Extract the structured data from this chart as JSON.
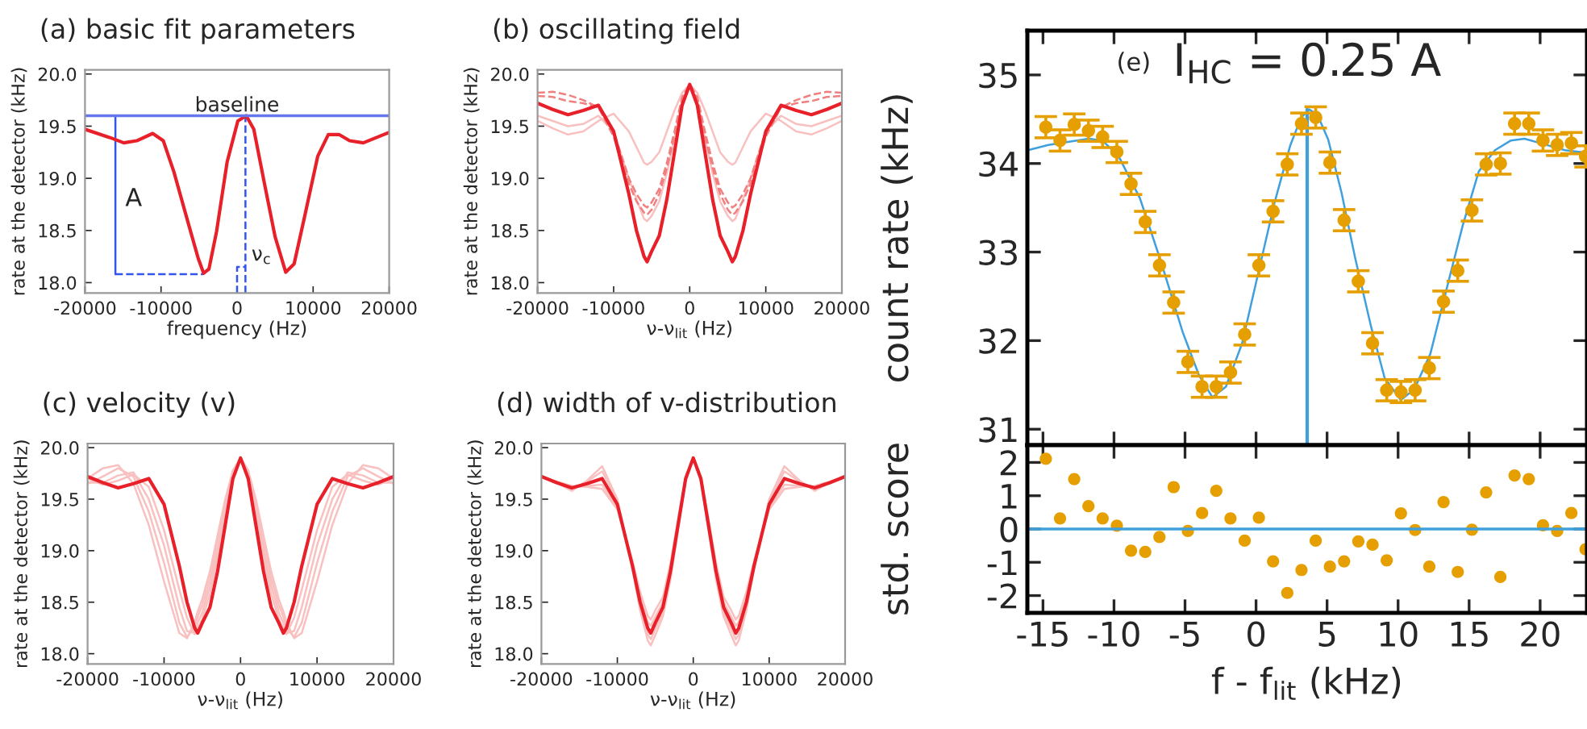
{
  "chart_data": [
    {
      "type": "line",
      "title": "(a) basic fit parameters",
      "xlabel": "frequency (Hz)",
      "ylabel": "rate at the detector (kHz)",
      "xlim": [
        -20000,
        20000
      ],
      "xticks": [
        -20000,
        -10000,
        0,
        10000,
        20000
      ],
      "ylim": [
        17.9,
        20.04
      ],
      "yticks": [
        {
          "value": 18,
          "label": "18.0"
        },
        18.5,
        {
          "value": 19,
          "label": "19.0"
        },
        19.5,
        {
          "value": 20,
          "label": "20.0"
        }
      ],
      "series": [
        {
          "color": "#3355ee",
          "x": [
            -16000,
            -16000
          ],
          "values": [
            18.08,
            19.6
          ]
        },
        {
          "color": "#3355ee",
          "line_style": "dashed",
          "x": [
            -16000,
            -4400
          ],
          "values": [
            18.08,
            18.08
          ]
        },
        {
          "color": "#3355ee",
          "line_style": "dashed",
          "x": [
            1100,
            1100
          ],
          "values": [
            17.9,
            19.6
          ]
        },
        {
          "color": "#3355ee",
          "line_style": "dashed",
          "x": [
            0,
            0,
            1100
          ],
          "values": [
            17.9,
            18.15,
            18.15
          ]
        },
        {
          "color": "#e8202a",
          "x": [
            -20000,
            -16700,
            -14900,
            -13200,
            -11100,
            -9700,
            -8300,
            -6500,
            -5100,
            -4400,
            -3700,
            -2700,
            -1300,
            100,
            1200,
            2200,
            3600,
            5000,
            6400,
            7500,
            8900,
            10600,
            12000,
            13400,
            14800,
            16600,
            18300,
            20000
          ],
          "values": [
            19.47,
            19.39,
            19.34,
            19.36,
            19.43,
            19.36,
            19.06,
            18.59,
            18.23,
            18.09,
            18.13,
            18.49,
            19.16,
            19.55,
            19.6,
            19.47,
            18.95,
            18.44,
            18.1,
            18.18,
            18.64,
            19.21,
            19.42,
            19.42,
            19.36,
            19.34,
            19.39,
            19.44
          ]
        }
      ],
      "ref_lines": [
        {
          "axis": "y",
          "value": 19.6,
          "label": "baseline",
          "color": "#6677ee"
        }
      ],
      "annotations": [
        "A",
        "ν$_{c}$"
      ]
    },
    {
      "type": "line",
      "title": "(b) oscillating field",
      "xlabel": "ν-ν$_{lit}$ (Hz)",
      "ylabel": "rate at the detector (kHz)",
      "xlim": [
        -20000,
        20000
      ],
      "xticks": [
        -20000,
        -10000,
        0,
        10000,
        20000
      ],
      "ylim": [
        17.9,
        20.04
      ],
      "yticks": [
        {
          "value": 18,
          "label": "18.0"
        },
        18.5,
        {
          "value": 19,
          "label": "19.0"
        },
        19.5,
        {
          "value": 20,
          "label": "20.0"
        }
      ],
      "x": [
        -20000,
        -18000,
        -16000,
        -14000,
        -12000,
        -10000,
        -8000,
        -7000,
        -6000,
        -5600,
        -5000,
        -4000,
        -3000,
        -2000,
        -1000,
        0,
        1000,
        2000,
        3000,
        4000,
        5000,
        5600,
        6000,
        7000,
        8000,
        10000,
        12000,
        14000,
        16000,
        18000,
        20000
      ],
      "series": [
        {
          "color": "#f9c0c0",
          "values": [
            19.55,
            19.48,
            19.42,
            19.45,
            19.55,
            19.62,
            19.45,
            19.3,
            19.15,
            19.13,
            19.16,
            19.25,
            19.45,
            19.65,
            19.82,
            19.9,
            19.82,
            19.65,
            19.45,
            19.25,
            19.16,
            19.13,
            19.15,
            19.3,
            19.45,
            19.62,
            19.55,
            19.45,
            19.42,
            19.48,
            19.55
          ]
        },
        {
          "color": "#f9c0c0",
          "values": [
            19.6,
            19.55,
            19.5,
            19.52,
            19.6,
            19.45,
            19.0,
            18.8,
            18.61,
            18.59,
            18.64,
            18.78,
            19.05,
            19.38,
            19.75,
            19.9,
            19.75,
            19.38,
            19.05,
            18.78,
            18.64,
            18.59,
            18.61,
            18.8,
            19.0,
            19.45,
            19.6,
            19.52,
            19.5,
            19.55,
            19.6
          ]
        },
        {
          "color": "#f08080",
          "line_style": "dashed",
          "values": [
            19.79,
            19.78,
            19.74,
            19.72,
            19.68,
            19.4,
            18.95,
            18.78,
            18.67,
            18.65,
            18.7,
            18.85,
            19.1,
            19.4,
            19.76,
            19.9,
            19.76,
            19.4,
            19.1,
            18.85,
            18.7,
            18.65,
            18.67,
            18.78,
            18.95,
            19.4,
            19.68,
            19.72,
            19.74,
            19.78,
            19.79
          ]
        },
        {
          "color": "#f08080",
          "line_style": "dashed",
          "values": [
            19.82,
            19.83,
            19.8,
            19.75,
            19.68,
            19.45,
            19.0,
            18.85,
            18.74,
            18.72,
            18.77,
            18.9,
            19.15,
            19.45,
            19.78,
            19.9,
            19.78,
            19.45,
            19.15,
            18.9,
            18.77,
            18.72,
            18.74,
            18.85,
            19.0,
            19.45,
            19.68,
            19.75,
            19.8,
            19.83,
            19.82
          ]
        },
        {
          "color": "#e8202a",
          "values": [
            19.72,
            19.66,
            19.61,
            19.65,
            19.7,
            19.45,
            18.85,
            18.5,
            18.25,
            18.2,
            18.3,
            18.45,
            18.8,
            19.25,
            19.7,
            19.9,
            19.7,
            19.25,
            18.8,
            18.45,
            18.3,
            18.2,
            18.25,
            18.5,
            18.85,
            19.45,
            19.7,
            19.65,
            19.61,
            19.66,
            19.72
          ]
        }
      ]
    },
    {
      "type": "line",
      "title": "(c) velocity (v)",
      "xlabel": "ν-ν$_{lit}$ (Hz)",
      "ylabel": "rate at the detector (kHz)",
      "xlim": [
        -20000,
        20000
      ],
      "xticks": [
        -20000,
        -10000,
        0,
        10000,
        20000
      ],
      "ylim": [
        17.9,
        20.04
      ],
      "yticks": [
        {
          "value": 18,
          "label": "18.0"
        },
        18.5,
        {
          "value": 19,
          "label": "19.0"
        },
        19.5,
        {
          "value": 20,
          "label": "20.0"
        }
      ],
      "x": [
        -20000,
        -18000,
        -16000,
        -14000,
        -12000,
        -10000,
        -8000,
        -7000,
        -6000,
        -5600,
        -5000,
        -4000,
        -3000,
        -2000,
        -1000,
        0,
        1000,
        2000,
        3000,
        4000,
        5000,
        5600,
        6000,
        7000,
        8000,
        10000,
        12000,
        14000,
        16000,
        18000,
        20000
      ],
      "series": [
        {
          "color": "#f9c0c0",
          "values": [
            19.7,
            19.64,
            19.68,
            19.74,
            19.62,
            19.2,
            18.62,
            18.35,
            18.19,
            18.24,
            18.34,
            18.58,
            18.93,
            19.34,
            19.73,
            19.9,
            19.73,
            19.34,
            18.93,
            18.58,
            18.34,
            18.24,
            18.19,
            18.35,
            18.62,
            19.2,
            19.62,
            19.74,
            19.68,
            19.64,
            19.7
          ]
        },
        {
          "color": "#f9c0c0",
          "values": [
            19.66,
            19.66,
            19.73,
            19.76,
            19.5,
            19.05,
            18.45,
            18.22,
            18.2,
            18.3,
            18.4,
            18.66,
            19.0,
            19.4,
            19.75,
            19.9,
            19.75,
            19.4,
            19.0,
            18.66,
            18.4,
            18.3,
            18.2,
            18.22,
            18.45,
            19.05,
            19.5,
            19.76,
            19.73,
            19.66,
            19.66
          ]
        },
        {
          "color": "#f9c0c0",
          "values": [
            19.65,
            19.72,
            19.8,
            19.72,
            19.38,
            18.88,
            18.3,
            18.16,
            18.26,
            18.36,
            18.47,
            18.73,
            19.08,
            19.45,
            19.77,
            19.9,
            19.77,
            19.45,
            19.08,
            18.73,
            18.47,
            18.36,
            18.26,
            18.16,
            18.3,
            18.88,
            19.38,
            19.72,
            19.8,
            19.72,
            19.65
          ]
        },
        {
          "color": "#f9c0c0",
          "values": [
            19.7,
            19.8,
            19.83,
            19.65,
            19.25,
            18.7,
            18.2,
            18.15,
            18.31,
            18.41,
            18.53,
            18.8,
            19.15,
            19.5,
            19.78,
            19.9,
            19.78,
            19.5,
            19.15,
            18.8,
            18.53,
            18.41,
            18.31,
            18.15,
            18.2,
            18.7,
            19.25,
            19.65,
            19.83,
            19.8,
            19.7
          ]
        },
        {
          "color": "#e8202a",
          "values": [
            19.72,
            19.66,
            19.61,
            19.65,
            19.7,
            19.45,
            18.85,
            18.5,
            18.25,
            18.2,
            18.3,
            18.45,
            18.8,
            19.25,
            19.7,
            19.9,
            19.7,
            19.25,
            18.8,
            18.45,
            18.3,
            18.2,
            18.25,
            18.5,
            18.85,
            19.45,
            19.7,
            19.65,
            19.61,
            19.66,
            19.72
          ]
        }
      ]
    },
    {
      "type": "line",
      "title": "(d) width of v-distribution",
      "xlabel": "ν-ν$_{lit}$ (Hz)",
      "ylabel": "rate at the detector (kHz)",
      "xlim": [
        -20000,
        20000
      ],
      "xticks": [
        -20000,
        -10000,
        0,
        10000,
        20000
      ],
      "ylim": [
        17.9,
        20.04
      ],
      "yticks": [
        {
          "value": 18,
          "label": "18.0"
        },
        18.5,
        {
          "value": 19,
          "label": "19.0"
        },
        19.5,
        {
          "value": 20,
          "label": "20.0"
        }
      ],
      "x": [
        -20000,
        -18000,
        -16000,
        -14000,
        -12000,
        -10000,
        -8000,
        -7000,
        -6000,
        -5600,
        -5000,
        -4000,
        -3000,
        -2000,
        -1000,
        0,
        1000,
        2000,
        3000,
        4000,
        5000,
        5600,
        6000,
        7000,
        8000,
        10000,
        12000,
        14000,
        16000,
        18000,
        20000
      ],
      "series": [
        {
          "color": "#f9c0c0",
          "values": [
            19.73,
            19.66,
            19.58,
            19.68,
            19.82,
            19.5,
            18.82,
            18.42,
            18.13,
            18.08,
            18.18,
            18.36,
            18.72,
            19.2,
            19.68,
            19.9,
            19.68,
            19.2,
            18.72,
            18.36,
            18.18,
            18.08,
            18.13,
            18.42,
            18.82,
            19.5,
            19.82,
            19.68,
            19.58,
            19.66,
            19.73
          ]
        },
        {
          "color": "#f9c0c0",
          "values": [
            19.72,
            19.66,
            19.6,
            19.67,
            19.77,
            19.48,
            18.84,
            18.46,
            18.19,
            18.14,
            18.24,
            18.4,
            18.76,
            19.22,
            19.69,
            19.9,
            19.69,
            19.22,
            18.76,
            18.4,
            18.24,
            18.14,
            18.19,
            18.46,
            18.84,
            19.48,
            19.77,
            19.67,
            19.6,
            19.66,
            19.72
          ]
        },
        {
          "color": "#f9c0c0",
          "values": [
            19.72,
            19.66,
            19.62,
            19.63,
            19.64,
            19.42,
            18.87,
            18.55,
            18.31,
            18.27,
            18.36,
            18.5,
            18.84,
            19.28,
            19.71,
            19.9,
            19.71,
            19.28,
            18.84,
            18.5,
            18.36,
            18.27,
            18.31,
            18.55,
            18.87,
            19.42,
            19.64,
            19.63,
            19.62,
            19.66,
            19.72
          ]
        },
        {
          "color": "#f9c0c0",
          "values": [
            19.72,
            19.67,
            19.63,
            19.62,
            19.6,
            19.4,
            18.9,
            18.6,
            18.37,
            18.33,
            18.42,
            18.55,
            18.88,
            19.31,
            19.72,
            19.9,
            19.72,
            19.31,
            18.88,
            18.55,
            18.42,
            18.33,
            18.37,
            18.6,
            18.9,
            19.4,
            19.6,
            19.62,
            19.63,
            19.67,
            19.72
          ]
        },
        {
          "color": "#e8202a",
          "values": [
            19.72,
            19.66,
            19.61,
            19.65,
            19.7,
            19.45,
            18.85,
            18.5,
            18.25,
            18.2,
            18.3,
            18.45,
            18.8,
            19.25,
            19.7,
            19.9,
            19.7,
            19.25,
            18.8,
            18.45,
            18.3,
            18.2,
            18.25,
            18.5,
            18.85,
            19.45,
            19.7,
            19.65,
            19.61,
            19.66,
            19.72
          ]
        }
      ]
    },
    {
      "type": "scatter",
      "ylabel": "count rate (kHz)",
      "tick_labels": "y",
      "xlim": [
        -16.1,
        23.3
      ],
      "xticks": [
        -15,
        -10,
        -5,
        0,
        5,
        10,
        15,
        20
      ],
      "ylim": [
        30.82,
        35.5
      ],
      "yticks": [
        31,
        32,
        33,
        34,
        35
      ],
      "series": [
        {
          "type": "scatter",
          "color": "#e69f00",
          "x": [
            -14.8,
            -13.8,
            -12.8,
            -11.8,
            -10.8,
            -9.8,
            -8.8,
            -7.8,
            -6.8,
            -5.8,
            -4.8,
            -3.8,
            -2.8,
            -1.8,
            -0.8,
            0.2,
            1.2,
            2.2,
            3.2,
            4.2,
            5.2,
            6.2,
            7.2,
            8.2,
            9.2,
            10.2,
            11.2,
            12.2,
            13.2,
            14.2,
            15.2,
            16.2,
            17.2,
            18.2,
            19.2,
            20.2,
            21.2,
            22.2,
            23.2
          ],
          "values": [
            34.41,
            34.26,
            34.44,
            34.37,
            34.3,
            34.13,
            33.77,
            33.34,
            32.85,
            32.43,
            31.76,
            31.48,
            31.48,
            31.64,
            32.07,
            32.85,
            33.46,
            33.99,
            34.45,
            34.52,
            34.01,
            33.36,
            32.67,
            31.97,
            31.44,
            31.42,
            31.44,
            31.69,
            32.44,
            32.79,
            33.47,
            33.99,
            34.0,
            34.45,
            34.45,
            34.26,
            34.21,
            34.23,
            34.08
          ],
          "errors": [
            0.12,
            0.12,
            0.12,
            0.12,
            0.12,
            0.12,
            0.12,
            0.12,
            0.12,
            0.12,
            0.12,
            0.12,
            0.12,
            0.12,
            0.12,
            0.12,
            0.12,
            0.12,
            0.12,
            0.12,
            0.12,
            0.12,
            0.12,
            0.12,
            0.12,
            0.12,
            0.12,
            0.12,
            0.12,
            0.12,
            0.12,
            0.12,
            0.12,
            0.12,
            0.12,
            0.12,
            0.12,
            0.12,
            0.12
          ]
        },
        {
          "type": "line",
          "color": "#3fa0dd",
          "x": [
            -16.06,
            -14.62,
            -11.78,
            -10.83,
            -9.7,
            -8.18,
            -6.67,
            -5.15,
            -4.02,
            -3.07,
            -2.12,
            -0.98,
            0.15,
            1.29,
            2.42,
            3.18,
            3.75,
            4.32,
            5.08,
            6.02,
            6.97,
            8.11,
            9.05,
            10.19,
            11.14,
            12.27,
            13.41,
            14.55,
            15.68,
            16.82,
            17.95,
            18.9,
            20.23,
            21.74,
            23.3
          ],
          "values": [
            34.15,
            34.21,
            34.28,
            34.26,
            34.09,
            33.61,
            32.88,
            32.09,
            31.61,
            31.36,
            31.48,
            31.97,
            32.76,
            33.55,
            34.21,
            34.52,
            34.61,
            34.55,
            34.27,
            33.67,
            32.94,
            32.15,
            31.58,
            31.33,
            31.45,
            31.85,
            32.58,
            33.3,
            33.91,
            34.15,
            34.26,
            34.28,
            34.22,
            34.15,
            34.12
          ]
        },
        {
          "type": "line",
          "color": "#3fa0dd",
          "x": [
            3.6,
            3.6
          ],
          "values": [
            30.82,
            34.61
          ]
        }
      ],
      "annotations": [
        "(e)",
        "I$_{HC}$ = 0.25 A"
      ]
    },
    {
      "type": "scatter",
      "xlabel": "f - f$_{lit}$ (kHz)",
      "ylabel": "std. score",
      "xlim": [
        -16.1,
        23.3
      ],
      "xticks": [
        -15,
        -10,
        -5,
        0,
        5,
        10,
        15,
        20
      ],
      "ylim": [
        -2.52,
        2.52
      ],
      "yticks": [
        -2,
        -1,
        0,
        1,
        2
      ],
      "series": [
        {
          "color": "#e69f00",
          "x": [
            -14.8,
            -13.8,
            -12.8,
            -11.8,
            -10.8,
            -9.8,
            -8.8,
            -7.8,
            -6.8,
            -5.8,
            -4.8,
            -3.8,
            -2.8,
            -1.8,
            -0.8,
            0.2,
            1.2,
            2.2,
            3.2,
            4.2,
            5.2,
            6.2,
            7.2,
            8.2,
            9.2,
            10.2,
            11.2,
            12.2,
            13.2,
            14.2,
            15.2,
            16.2,
            17.2,
            18.2,
            19.2,
            20.2,
            21.2,
            22.2,
            23.2
          ],
          "values": [
            2.11,
            0.32,
            1.5,
            0.69,
            0.32,
            0.1,
            -0.65,
            -0.69,
            -0.24,
            1.26,
            -0.06,
            0.48,
            1.15,
            0.32,
            -0.35,
            0.34,
            -0.97,
            -1.92,
            -1.23,
            -0.35,
            -1.13,
            -0.97,
            -0.37,
            -0.47,
            -0.94,
            0.47,
            -0.03,
            -1.13,
            0.81,
            -1.29,
            -0.02,
            1.1,
            -1.44,
            1.61,
            1.5,
            0.11,
            -0.06,
            0.48,
            -0.61
          ]
        }
      ],
      "ref_lines": [
        {
          "axis": "y",
          "value": 0,
          "color": "#3fa0dd"
        }
      ]
    }
  ]
}
